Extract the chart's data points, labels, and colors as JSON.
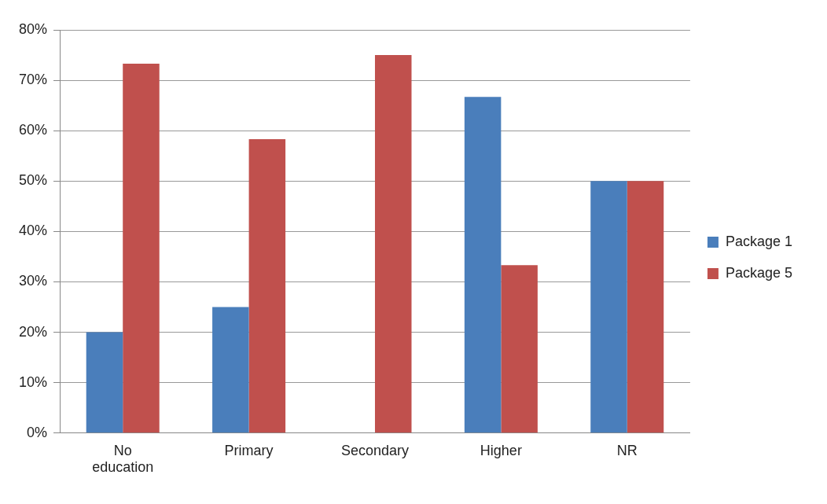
{
  "chart_data": {
    "type": "bar",
    "categories": [
      "No education",
      "Primary",
      "Secondary",
      "Higher",
      "NR"
    ],
    "series": [
      {
        "name": "Package 1",
        "color": "#4a7ebb",
        "values": [
          20,
          25,
          0,
          66.7,
          50
        ]
      },
      {
        "name": "Package 5",
        "color": "#c0504d",
        "values": [
          73.3,
          58.3,
          75,
          33.3,
          50
        ]
      }
    ],
    "ylim": [
      0,
      80
    ],
    "yticks": [
      {
        "value": 0,
        "label": "0%"
      },
      {
        "value": 10,
        "label": "10%"
      },
      {
        "value": 20,
        "label": "20%"
      },
      {
        "value": 30,
        "label": "30%"
      },
      {
        "value": 40,
        "label": "40%"
      },
      {
        "value": 50,
        "label": "50%"
      },
      {
        "value": 60,
        "label": "60%"
      },
      {
        "value": 70,
        "label": "70%"
      },
      {
        "value": 80,
        "label": "80%"
      }
    ],
    "grid": "y",
    "legend": "right"
  }
}
